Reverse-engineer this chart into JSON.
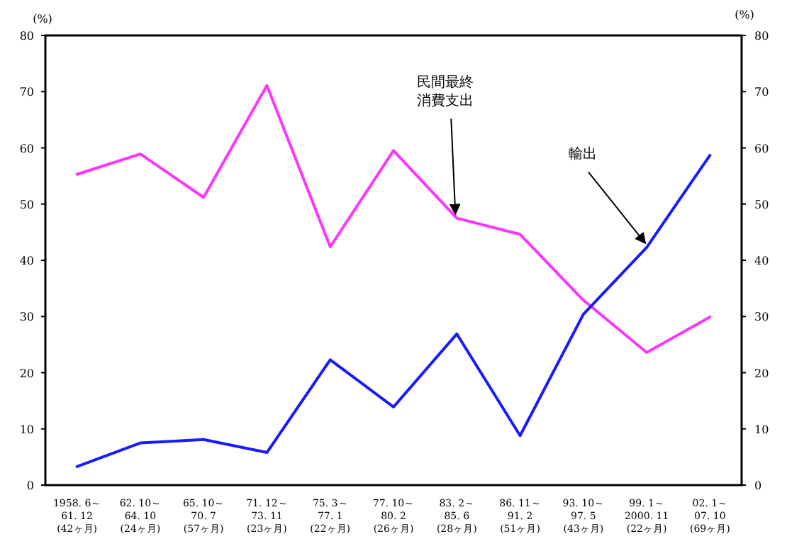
{
  "chart_data": {
    "type": "line",
    "ylabel": "(%)",
    "y2label": "(%)",
    "categories": [
      "1958. 6～\n61. 12\n(42ヶ月)",
      "62. 10～\n64. 10\n(24ヶ月)",
      "65. 10～\n70. 7\n(57ヶ月)",
      "71. 12～\n73. 11\n(23ヶ月)",
      "75. 3～\n77. 1\n(22ヶ月)",
      "77. 10～\n80. 2\n(26ヶ月)",
      "83. 2～\n85. 6\n(28ヶ月)",
      "86. 11～\n91. 2\n(51ヶ月)",
      "93. 10～\n97. 5\n(43ヶ月)",
      "99. 1～\n2000. 11\n(22ヶ月)",
      "02. 1～\n07. 10\n(69ヶ月)"
    ],
    "series": [
      {
        "color": "#ff33ff",
        "values": [
          55.3,
          58.9,
          51.2,
          71.1,
          42.4,
          59.5,
          47.5,
          44.6,
          32.9,
          23.6,
          29.9
        ]
      },
      {
        "color": "#1a1aff",
        "values": [
          3.3,
          7.5,
          8.1,
          5.8,
          22.3,
          13.9,
          26.9,
          8.8,
          30.4,
          42.3,
          58.7
        ]
      }
    ],
    "ylim": [
      0,
      80
    ],
    "yticks": [
      0,
      10,
      20,
      30,
      40,
      50,
      60,
      70,
      80
    ],
    "y2lim": [
      0,
      80
    ],
    "y2ticks": [
      0,
      10,
      20,
      30,
      40,
      50,
      60,
      70,
      80
    ],
    "annotations": [
      {
        "text": "民間最終消費支出",
        "x": "83. 2～\n85. 6\n(28ヶ月)",
        "y": 47.5
      },
      {
        "text": "輸出",
        "x": "99. 1～\n2000. 11\n(22ヶ月)",
        "y": 42.3
      }
    ],
    "grid": false,
    "marker": "none",
    "line_style": "solid"
  }
}
